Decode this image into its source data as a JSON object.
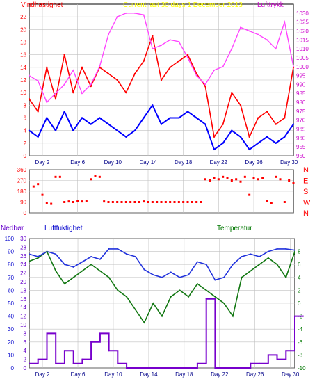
{
  "header": {
    "left_title": "Vindhastighet",
    "center_title": "Current last 30 days 1 December 2013",
    "right_title": "Lufttrykk"
  },
  "lower_labels": {
    "precip": "Nedbør",
    "humidity": "Luftfuktighet",
    "temperature": "Temperatur"
  },
  "colors": {
    "wind_gust": "#ff0000",
    "wind_avg": "#0000ff",
    "pressure": "#ff44ff",
    "direction": "#ff0000",
    "humidity": "#2233dd",
    "temperature": "#117711",
    "precip": "#7700cc",
    "left_title": "#ff0000",
    "center_title": "#ffff00",
    "right_title": "#cc00cc",
    "precip_axis": "#6600cc",
    "temp_axis": "#007700"
  },
  "chart_data": [
    {
      "type": "line",
      "xcategories": [
        "Day 2",
        "Day 6",
        "Day 10",
        "Day 14",
        "Day 18",
        "Day 22",
        "Day 26",
        "Day 30"
      ],
      "xlim": [
        0,
        30
      ],
      "ylim": [
        0,
        24
      ],
      "yticks": [
        "0",
        "2",
        "4",
        "6",
        "8",
        "10",
        "12",
        "14",
        "16",
        "18",
        "20",
        "22"
      ],
      "y2lim": [
        950,
        1035
      ],
      "y2ticks": [
        "950",
        "955",
        "960",
        "965",
        "970",
        "975",
        "980",
        "985",
        "990",
        "995",
        "1000",
        "1005",
        "1010",
        "1015",
        "1020",
        "1025",
        "1030"
      ],
      "series": [
        {
          "name": "Vindhastighet",
          "role": "gust",
          "x": [
            0,
            1,
            2,
            3,
            4,
            5,
            6,
            7,
            8,
            9,
            10,
            11,
            12,
            13,
            14,
            15,
            16,
            17,
            18,
            19,
            20,
            21,
            22,
            23,
            24,
            25,
            26,
            27,
            28,
            29,
            30
          ],
          "values": [
            9,
            7,
            14,
            9,
            16,
            10,
            14,
            11,
            14,
            13,
            12,
            10,
            13,
            15,
            19,
            12,
            14,
            15,
            16,
            13,
            11,
            3,
            5,
            10,
            8,
            3,
            6,
            7,
            5,
            6,
            14
          ]
        },
        {
          "name": "",
          "role": "average",
          "x": [
            0,
            1,
            2,
            3,
            4,
            5,
            6,
            7,
            8,
            9,
            10,
            11,
            12,
            13,
            14,
            15,
            16,
            17,
            18,
            19,
            20,
            21,
            22,
            23,
            24,
            25,
            26,
            27,
            28,
            29,
            30
          ],
          "values": [
            4,
            3,
            6,
            4,
            7,
            4,
            6,
            5,
            6,
            5,
            4,
            3,
            4,
            6,
            8,
            5,
            6,
            6,
            7,
            6,
            5,
            1,
            2,
            4,
            3,
            1,
            2,
            3,
            2,
            3,
            5
          ]
        },
        {
          "name": "Lufttrykk",
          "role": "pressure",
          "axis": "right",
          "x": [
            0,
            1,
            2,
            3,
            4,
            5,
            6,
            7,
            8,
            9,
            10,
            11,
            12,
            13,
            14,
            15,
            16,
            17,
            18,
            19,
            20,
            21,
            22,
            23,
            24,
            25,
            26,
            27,
            28,
            29,
            30
          ],
          "values": [
            995,
            992,
            980,
            985,
            990,
            998,
            985,
            990,
            1000,
            1018,
            1028,
            1030,
            1030,
            1029,
            1010,
            1012,
            1015,
            1014,
            1005,
            995,
            990,
            998,
            1000,
            1010,
            1022,
            1020,
            1018,
            1015,
            1010,
            1025,
            1000
          ]
        }
      ]
    },
    {
      "type": "scatter",
      "xlim": [
        0,
        30
      ],
      "ylim": [
        0,
        360
      ],
      "yticks": [
        "0",
        "90",
        "180",
        "270",
        "360"
      ],
      "y2ticks": [
        "N",
        "W",
        "S",
        "E",
        "N"
      ],
      "series": [
        {
          "name": "",
          "x": [
            0.5,
            1,
            1.5,
            2,
            2.5,
            3,
            3.5,
            4,
            4.5,
            5,
            5.5,
            6,
            6.5,
            7,
            7.5,
            8,
            8.5,
            9,
            9.5,
            10,
            10.5,
            11,
            11.5,
            12,
            12.5,
            13,
            13.5,
            14,
            14.5,
            15,
            15.5,
            16,
            16.5,
            17,
            17.5,
            18,
            18.5,
            19,
            19.5,
            20,
            20.5,
            21,
            21.5,
            22,
            22.5,
            23,
            23.5,
            24,
            24.5,
            25,
            25.5,
            26,
            26.5,
            27,
            27.5,
            28,
            28.5,
            29,
            29.5,
            30
          ],
          "values": [
            220,
            240,
            150,
            80,
            75,
            300,
            300,
            90,
            95,
            90,
            100,
            95,
            100,
            280,
            310,
            300,
            95,
            90,
            90,
            90,
            90,
            90,
            90,
            90,
            90,
            95,
            90,
            90,
            90,
            90,
            90,
            90,
            90,
            90,
            90,
            90,
            90,
            90,
            90,
            280,
            270,
            290,
            280,
            300,
            290,
            270,
            280,
            260,
            300,
            150,
            290,
            280,
            290,
            100,
            80,
            300,
            280,
            90,
            270,
            250
          ]
        }
      ]
    },
    {
      "type": "line",
      "xcategories": [
        "Day 2",
        "Day 6",
        "Day 10",
        "Day 14",
        "Day 18",
        "Day 22",
        "Day 26",
        "Day 30"
      ],
      "xlim": [
        0,
        30
      ],
      "ylim_humidity": [
        0,
        100
      ],
      "yticks_humidity": [
        "0",
        "10",
        "20",
        "30",
        "40",
        "50",
        "60",
        "70",
        "80",
        "90",
        "100"
      ],
      "ylim_precip": [
        0,
        30
      ],
      "yticks_precip": [
        "0",
        "2",
        "4",
        "6",
        "8",
        "10",
        "12",
        "14",
        "16",
        "18",
        "20",
        "22",
        "24",
        "26",
        "28",
        "30"
      ],
      "ylim_temp": [
        -10,
        10
      ],
      "yticks_temp": [
        "-10",
        "-8",
        "-6",
        "-4",
        "-2",
        "0",
        "2",
        "4",
        "6",
        "8"
      ],
      "series": [
        {
          "name": "Luftfuktighet",
          "axis": "humidity",
          "x": [
            0,
            1,
            2,
            3,
            4,
            5,
            6,
            7,
            8,
            9,
            10,
            11,
            12,
            13,
            14,
            15,
            16,
            17,
            18,
            19,
            20,
            21,
            22,
            23,
            24,
            25,
            26,
            27,
            28,
            29,
            30
          ],
          "values": [
            88,
            86,
            90,
            88,
            80,
            78,
            82,
            86,
            84,
            92,
            92,
            88,
            86,
            76,
            72,
            70,
            74,
            70,
            72,
            82,
            80,
            68,
            70,
            80,
            86,
            88,
            86,
            90,
            92,
            92,
            91
          ]
        },
        {
          "name": "Temperatur",
          "axis": "temp",
          "x": [
            0,
            1,
            2,
            3,
            4,
            5,
            6,
            7,
            8,
            9,
            10,
            11,
            12,
            13,
            14,
            15,
            16,
            17,
            18,
            19,
            20,
            21,
            22,
            23,
            24,
            25,
            26,
            27,
            28,
            29,
            30
          ],
          "values": [
            6.5,
            7,
            8,
            5,
            3,
            4,
            5,
            6,
            5,
            4,
            2,
            1,
            -1,
            -3,
            0,
            -2,
            1,
            2,
            1,
            3,
            2,
            1,
            0,
            -2,
            4,
            5,
            6,
            7,
            6,
            4,
            8
          ]
        },
        {
          "name": "Nedbør",
          "axis": "precip",
          "x": [
            0,
            1,
            2,
            3,
            4,
            5,
            6,
            7,
            8,
            9,
            10,
            11,
            12,
            13,
            14,
            15,
            16,
            17,
            18,
            19,
            20,
            21,
            22,
            23,
            24,
            25,
            26,
            27,
            28,
            29,
            30
          ],
          "values": [
            1,
            2,
            8,
            1,
            4,
            1,
            2,
            6,
            8,
            4,
            1,
            0,
            0,
            0,
            0,
            0,
            0,
            0,
            0,
            1,
            16,
            0,
            0,
            0,
            0,
            1,
            1,
            3,
            2,
            4,
            12
          ]
        }
      ]
    }
  ]
}
